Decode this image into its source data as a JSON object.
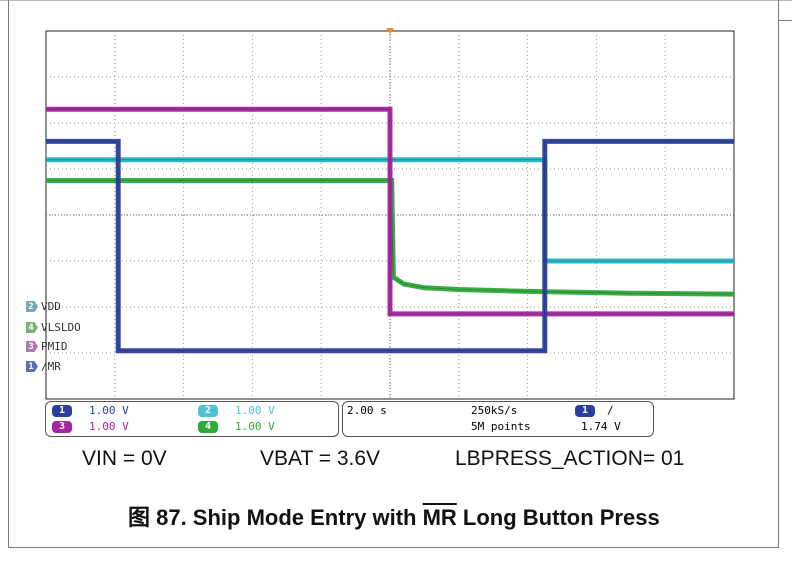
{
  "chart_data": {
    "type": "line",
    "title": "",
    "time_axis": {
      "seconds_per_division": 2.0,
      "divisions": 10
    },
    "vertical": {
      "divisions": 8
    },
    "trigger_time_s": 10.0,
    "series": [
      {
        "name": "VDD",
        "channel": "2",
        "color": "#21b3c4",
        "x": [
          0,
          10.0,
          14.5,
          14.5,
          20
        ],
        "y": [
          5.2,
          5.2,
          5.2,
          3.0,
          3.0
        ]
      },
      {
        "name": "VLSLDO",
        "channel": "4",
        "color": "#2faa3a",
        "x": [
          0,
          10.0,
          10.05,
          10.1,
          10.4,
          11.0,
          12.0,
          14.0,
          17.0,
          20
        ],
        "y": [
          4.75,
          4.75,
          4.75,
          2.65,
          2.5,
          2.42,
          2.38,
          2.34,
          2.3,
          2.28
        ]
      },
      {
        "name": "PMID",
        "channel": "3",
        "color": "#a4259f",
        "x": [
          0,
          10.0,
          10.0,
          20
        ],
        "y": [
          6.3,
          6.3,
          1.85,
          1.85
        ]
      },
      {
        "name": "/MR",
        "channel": "1",
        "color": "#2b3f9e",
        "x": [
          0,
          2.1,
          2.1,
          14.5,
          14.5,
          20
        ],
        "y": [
          5.6,
          5.6,
          1.05,
          1.05,
          5.6,
          5.6
        ]
      }
    ]
  },
  "scope_status": {
    "ch1": {
      "num": "1",
      "scale": "1.00 V",
      "color": "#2b3f9e"
    },
    "ch2": {
      "num": "2",
      "scale": "1.00 V",
      "color": "#4fc3d2"
    },
    "ch3": {
      "num": "3",
      "scale": "1.00 V",
      "color": "#a4259f"
    },
    "ch4": {
      "num": "4",
      "scale": "1.00 V",
      "color": "#2faa3a"
    },
    "timebase": "2.00 s",
    "sample_rate": "250kS/s",
    "record_length": "5M points",
    "trigger_channel": "1",
    "trigger_slope": "/",
    "trigger_level": "1.74 V"
  },
  "conditions": {
    "vin": "VIN = 0V",
    "vbat": "VBAT = 3.6V",
    "lbpress": "LBPRESS_ACTION= 01"
  },
  "caption": {
    "prefix": "图 87. Ship Mode Entry with ",
    "signal": "MR",
    "suffix": " Long Button Press"
  }
}
